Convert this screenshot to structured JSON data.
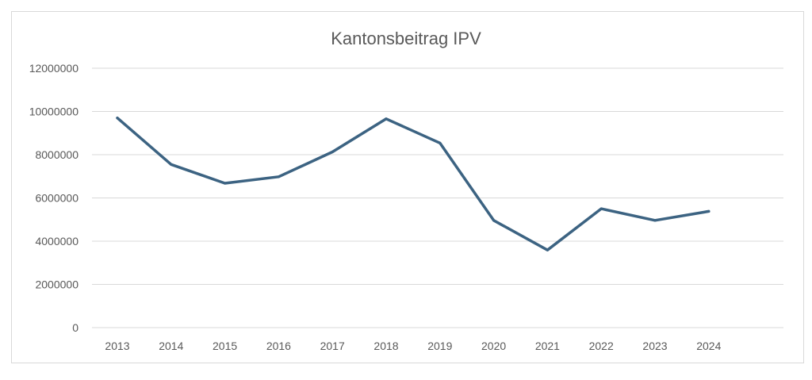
{
  "chart_data": {
    "type": "line",
    "title": "Kantonsbeitrag IPV",
    "xlabel": "",
    "ylabel": "",
    "categories": [
      "2013",
      "2014",
      "2015",
      "2016",
      "2017",
      "2018",
      "2019",
      "2020",
      "2021",
      "2022",
      "2023",
      "2024"
    ],
    "series": [
      {
        "name": "Kantonsbeitrag IPV",
        "color": "#3c6382",
        "values": [
          9700000,
          7550000,
          6680000,
          6980000,
          8130000,
          9660000,
          8540000,
          4960000,
          3590000,
          5500000,
          4960000,
          5380000
        ]
      }
    ],
    "ylim": [
      0,
      12000000
    ],
    "yticks": [
      "0",
      "2000000",
      "4000000",
      "6000000",
      "8000000",
      "10000000",
      "12000000"
    ],
    "ytick_values": [
      0,
      2000000,
      4000000,
      6000000,
      8000000,
      10000000,
      12000000
    ],
    "grid": true,
    "legend": "none"
  }
}
